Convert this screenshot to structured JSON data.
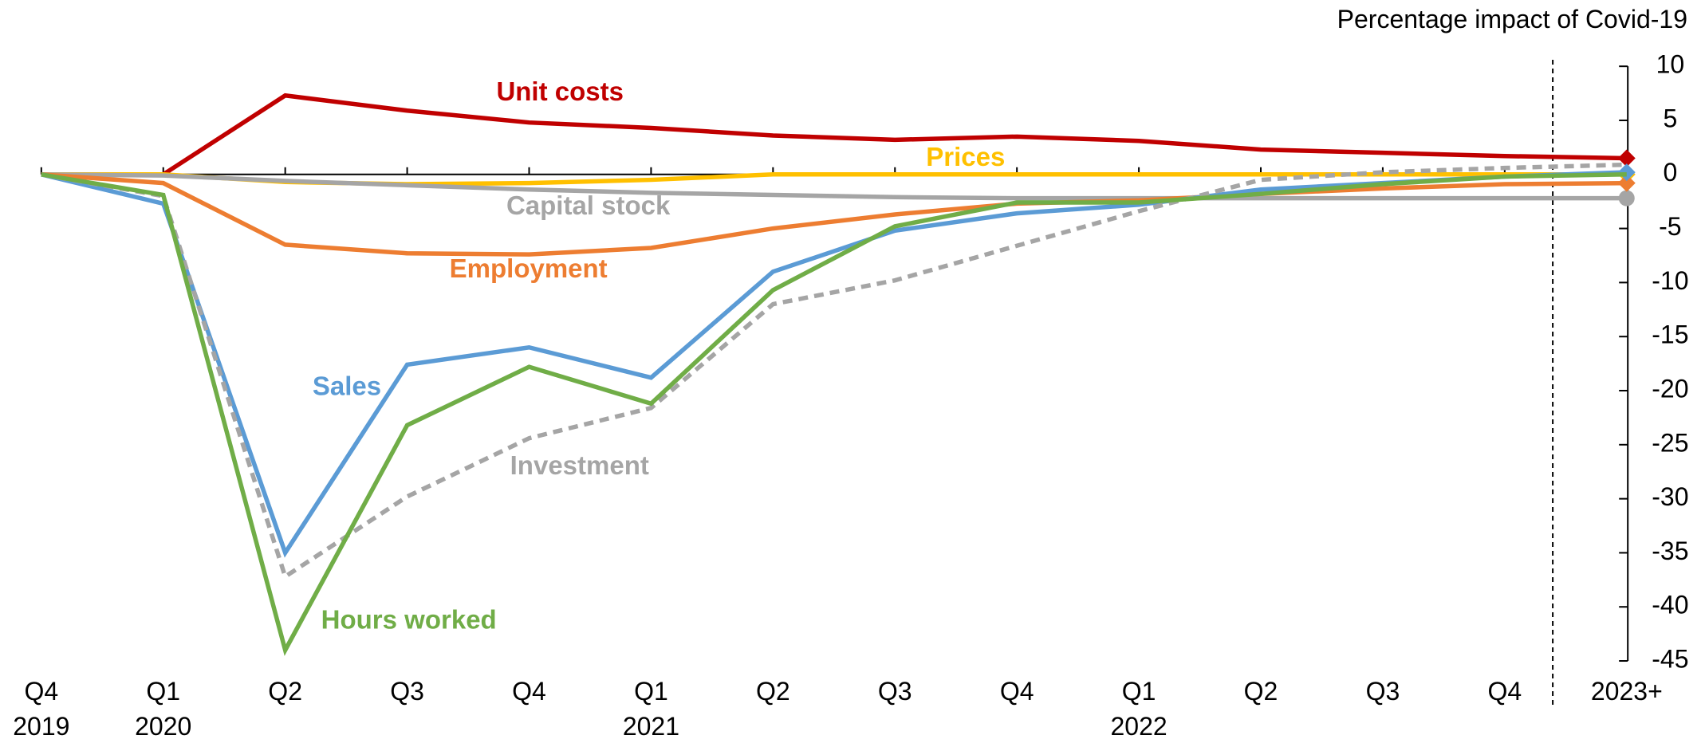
{
  "chart_data": {
    "type": "line",
    "title": "Percentage impact of Covid-19",
    "categories": [
      "Q4\n2019",
      "Q1\n2020",
      "Q2",
      "Q3",
      "Q4",
      "Q1\n2021",
      "Q2",
      "Q3",
      "Q4",
      "Q1\n2022",
      "Q2",
      "Q3",
      "Q4",
      "2023+"
    ],
    "ylim": [
      -45,
      10
    ],
    "yticks": [
      10,
      5,
      0,
      -5,
      -10,
      -15,
      -20,
      -25,
      -30,
      -35,
      -40,
      -45
    ],
    "y_axis_side": "right",
    "series": [
      {
        "name": "Unit costs",
        "color": "#c00000",
        "marker": "diamond",
        "values": [
          0,
          0,
          7.3,
          5.9,
          4.8,
          4.3,
          3.6,
          3.2,
          3.5,
          3.1,
          2.3,
          2.0,
          1.7,
          1.5
        ]
      },
      {
        "name": "Prices",
        "color": "#ffc000",
        "marker": "diamond",
        "values": [
          0,
          0,
          -0.7,
          -0.9,
          -0.8,
          -0.5,
          0,
          0,
          0,
          0,
          0,
          0,
          0,
          0
        ]
      },
      {
        "name": "Capital stock",
        "color": "#a5a5a5",
        "marker": "circle",
        "values": [
          0,
          -0.1,
          -0.6,
          -1.0,
          -1.4,
          -1.7,
          -1.9,
          -2.1,
          -2.2,
          -2.2,
          -2.2,
          -2.2,
          -2.2,
          -2.2
        ]
      },
      {
        "name": "Employment",
        "color": "#ed7d31",
        "marker": "diamond",
        "values": [
          0,
          -0.8,
          -6.5,
          -7.3,
          -7.4,
          -6.8,
          -5.0,
          -3.7,
          -2.7,
          -2.4,
          -1.8,
          -1.3,
          -0.9,
          -0.8
        ]
      },
      {
        "name": "Sales",
        "color": "#5b9bd5",
        "marker": "diamond",
        "values": [
          0,
          -2.7,
          -35,
          -17.6,
          -16,
          -18.8,
          -9,
          -5.2,
          -3.6,
          -2.8,
          -1.4,
          -0.8,
          -0.2,
          0.2
        ]
      },
      {
        "name": "Investment",
        "color": "#a5a5a5",
        "dashed": true,
        "values": [
          0,
          -2.0,
          -37.2,
          -29.8,
          -24.4,
          -21.6,
          -12,
          -9.8,
          -6.6,
          -3.4,
          -0.5,
          0.2,
          0.6,
          0.9
        ]
      },
      {
        "name": "Hours worked",
        "color": "#70ad47",
        "values": [
          0,
          -1.9,
          -44,
          -23.2,
          -17.8,
          -21.2,
          -10.7,
          -4.8,
          -2.6,
          -2.6,
          -1.8,
          -0.9,
          -0.2,
          0
        ]
      }
    ]
  }
}
